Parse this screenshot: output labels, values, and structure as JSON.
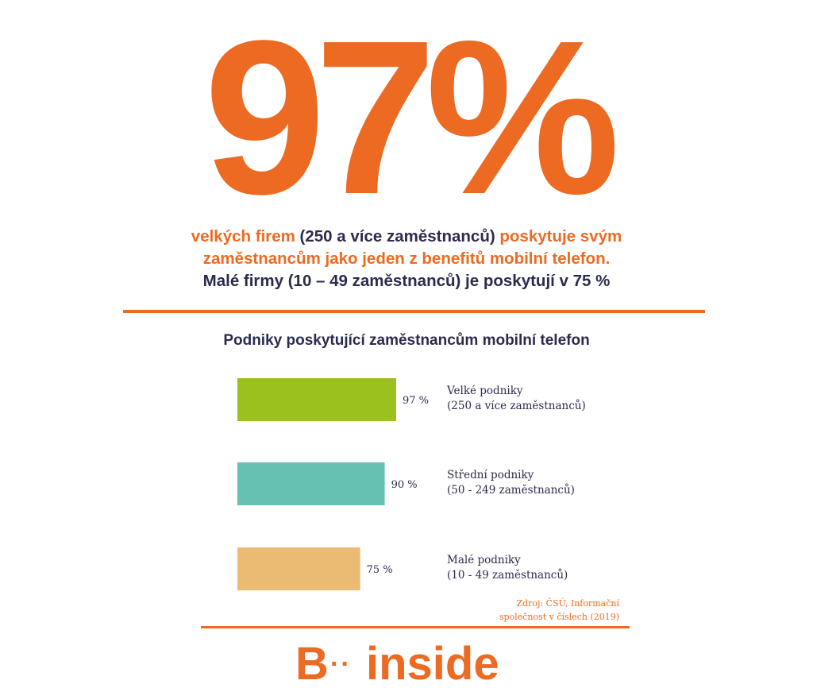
{
  "hero": {
    "value": "97%"
  },
  "headline": {
    "part1": "velkých firem ",
    "part2": "(250 a více zaměstnanců) ",
    "part3": "poskytuje svým",
    "line2": "zaměstnancům jako jeden z benefitů mobilní telefon.",
    "line3": "Malé firmy (10 – 49 zaměstnanců) je poskytují v 75 %"
  },
  "colors": {
    "accent": "#ec6a21",
    "dark": "#2b2b4f",
    "green": "#9bc11f",
    "teal": "#66c1b2",
    "sand": "#ebbb73"
  },
  "chart_data": {
    "type": "bar",
    "orientation": "horizontal",
    "title": "Podniky poskytující zaměstnancům mobilní telefon",
    "xlabel": "",
    "ylabel": "",
    "xlim": [
      0,
      100
    ],
    "categories": [
      {
        "name": "Velké podniky",
        "sub": "(250 a více zaměstnanců)"
      },
      {
        "name": "Střední podniky",
        "sub": "(50 - 249 zaměstnanců)"
      },
      {
        "name": "Malé podniky",
        "sub": "(10 - 49 zaměstnanců)"
      }
    ],
    "values": [
      97,
      90,
      75
    ],
    "value_labels": [
      "97 %",
      "90 %",
      "75 %"
    ],
    "colors": [
      "#9bc11f",
      "#66c1b2",
      "#ebbb73"
    ]
  },
  "source": {
    "line1": "Zdroj: ČSÚ, Informační",
    "line2": "společnost v číslech (2019)"
  },
  "logo": {
    "letter": "B",
    "dots": "··",
    "word": "inside"
  }
}
